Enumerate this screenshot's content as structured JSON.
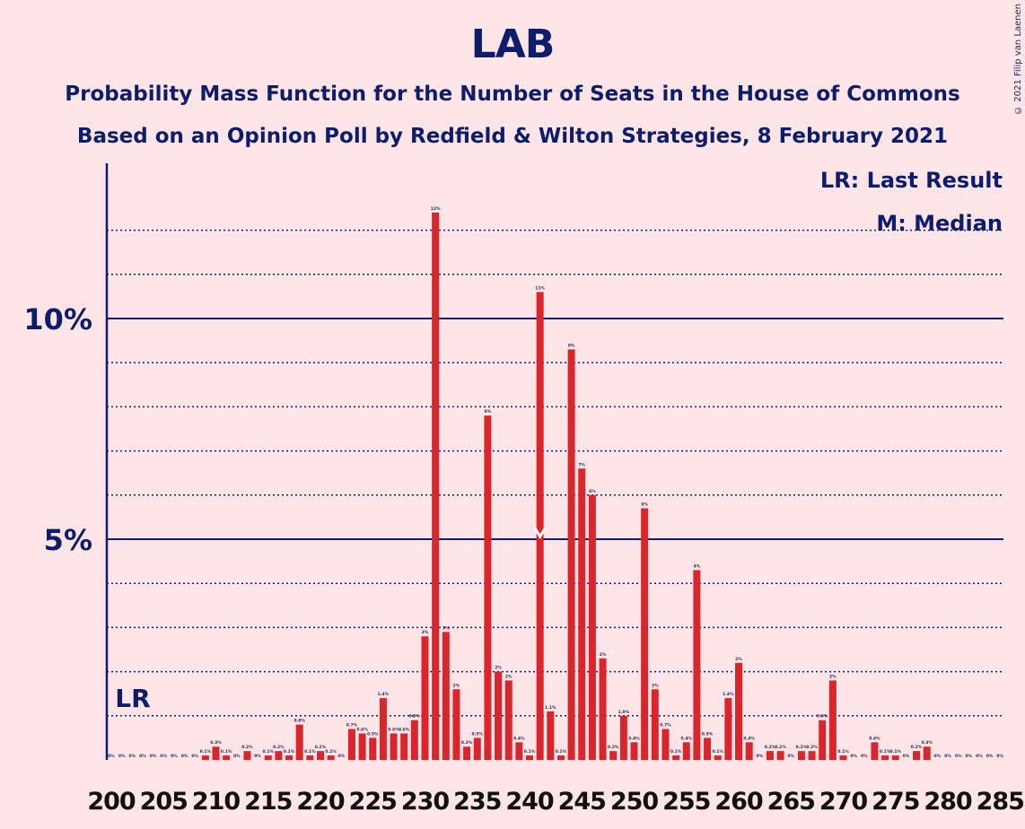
{
  "chart_data": {
    "type": "bar",
    "title": "LAB",
    "subtitle_1": "Probability Mass Function for the Number of Seats in the House of Commons",
    "subtitle_2": "Based on an Opinion Poll by Redfield & Wilton Strategies, 8 February 2021",
    "credit": "© 2021 Filip van Laenen",
    "legend": {
      "lr": "LR: Last Result",
      "m": "M: Median",
      "placement": "top-right"
    },
    "lr_label": "LR",
    "last_result_seat": 202,
    "median_seat": 241,
    "median_marker": "M",
    "y_ticks": [
      {
        "value": 5,
        "label": "5%"
      },
      {
        "value": 10,
        "label": "10%"
      }
    ],
    "ylim": [
      0,
      13.5
    ],
    "xlim": [
      200,
      285
    ],
    "x_ticks": [
      200,
      205,
      210,
      215,
      220,
      225,
      230,
      235,
      240,
      245,
      250,
      255,
      260,
      265,
      270,
      275,
      280,
      285
    ],
    "bar_color": "#d9252b",
    "axis_color": "#0c1d6b",
    "bars": [
      {
        "seat": 200,
        "value": 0,
        "label": "0%"
      },
      {
        "seat": 201,
        "value": 0,
        "label": "0%"
      },
      {
        "seat": 202,
        "value": 0,
        "label": "0%"
      },
      {
        "seat": 203,
        "value": 0,
        "label": "0%"
      },
      {
        "seat": 204,
        "value": 0,
        "label": "0%"
      },
      {
        "seat": 205,
        "value": 0,
        "label": "0%"
      },
      {
        "seat": 206,
        "value": 0,
        "label": "0%"
      },
      {
        "seat": 207,
        "value": 0,
        "label": "0%"
      },
      {
        "seat": 208,
        "value": 0,
        "label": "0%"
      },
      {
        "seat": 209,
        "value": 0.1,
        "label": "0.1%"
      },
      {
        "seat": 210,
        "value": 0.3,
        "label": "0.3%"
      },
      {
        "seat": 211,
        "value": 0.1,
        "label": "0.1%"
      },
      {
        "seat": 212,
        "value": 0,
        "label": "0%"
      },
      {
        "seat": 213,
        "value": 0.2,
        "label": "0.2%"
      },
      {
        "seat": 214,
        "value": 0,
        "label": "0%"
      },
      {
        "seat": 215,
        "value": 0.1,
        "label": "0.1%"
      },
      {
        "seat": 216,
        "value": 0.2,
        "label": "0.2%"
      },
      {
        "seat": 217,
        "value": 0.1,
        "label": "0.1%"
      },
      {
        "seat": 218,
        "value": 0.8,
        "label": "0.8%"
      },
      {
        "seat": 219,
        "value": 0.1,
        "label": "0.1%"
      },
      {
        "seat": 220,
        "value": 0.2,
        "label": "0.2%"
      },
      {
        "seat": 221,
        "value": 0.1,
        "label": "0.1%"
      },
      {
        "seat": 222,
        "value": 0,
        "label": "0%"
      },
      {
        "seat": 223,
        "value": 0.7,
        "label": "0.7%"
      },
      {
        "seat": 224,
        "value": 0.6,
        "label": "0.6%"
      },
      {
        "seat": 225,
        "value": 0.5,
        "label": "0.5%"
      },
      {
        "seat": 226,
        "value": 1.4,
        "label": "1.4%"
      },
      {
        "seat": 227,
        "value": 0.6,
        "label": "0.6%"
      },
      {
        "seat": 228,
        "value": 0.6,
        "label": "0.6%"
      },
      {
        "seat": 229,
        "value": 0.9,
        "label": "0.9%"
      },
      {
        "seat": 230,
        "value": 2.8,
        "label": "3%"
      },
      {
        "seat": 231,
        "value": 12.4,
        "label": "12%"
      },
      {
        "seat": 232,
        "value": 2.9,
        "label": "3%"
      },
      {
        "seat": 233,
        "value": 1.6,
        "label": "2%"
      },
      {
        "seat": 234,
        "value": 0.3,
        "label": "0.3%"
      },
      {
        "seat": 235,
        "value": 0.5,
        "label": "0.5%"
      },
      {
        "seat": 236,
        "value": 7.8,
        "label": "8%"
      },
      {
        "seat": 237,
        "value": 2.0,
        "label": "2%"
      },
      {
        "seat": 238,
        "value": 1.8,
        "label": "2%"
      },
      {
        "seat": 239,
        "value": 0.4,
        "label": "0.4%"
      },
      {
        "seat": 240,
        "value": 0.1,
        "label": "0.1%"
      },
      {
        "seat": 241,
        "value": 10.6,
        "label": "11%"
      },
      {
        "seat": 242,
        "value": 1.1,
        "label": "1.1%"
      },
      {
        "seat": 243,
        "value": 0.1,
        "label": "0.1%"
      },
      {
        "seat": 244,
        "value": 9.3,
        "label": "9%"
      },
      {
        "seat": 245,
        "value": 6.6,
        "label": "7%"
      },
      {
        "seat": 246,
        "value": 6.0,
        "label": "6%"
      },
      {
        "seat": 247,
        "value": 2.3,
        "label": "2%"
      },
      {
        "seat": 248,
        "value": 0.2,
        "label": "0.2%"
      },
      {
        "seat": 249,
        "value": 1.0,
        "label": "1.0%"
      },
      {
        "seat": 250,
        "value": 0.4,
        "label": "0.4%"
      },
      {
        "seat": 251,
        "value": 5.7,
        "label": "6%"
      },
      {
        "seat": 252,
        "value": 1.6,
        "label": "2%"
      },
      {
        "seat": 253,
        "value": 0.7,
        "label": "0.7%"
      },
      {
        "seat": 254,
        "value": 0.1,
        "label": "0.1%"
      },
      {
        "seat": 255,
        "value": 0.4,
        "label": "0.4%"
      },
      {
        "seat": 256,
        "value": 4.3,
        "label": "4%"
      },
      {
        "seat": 257,
        "value": 0.5,
        "label": "0.5%"
      },
      {
        "seat": 258,
        "value": 0.1,
        "label": "0.1%"
      },
      {
        "seat": 259,
        "value": 1.4,
        "label": "1.4%"
      },
      {
        "seat": 260,
        "value": 2.2,
        "label": "2%"
      },
      {
        "seat": 261,
        "value": 0.4,
        "label": "0.4%"
      },
      {
        "seat": 262,
        "value": 0,
        "label": "0%"
      },
      {
        "seat": 263,
        "value": 0.2,
        "label": "0.2%"
      },
      {
        "seat": 264,
        "value": 0.2,
        "label": "0.2%"
      },
      {
        "seat": 265,
        "value": 0,
        "label": "0%"
      },
      {
        "seat": 266,
        "value": 0.2,
        "label": "0.2%"
      },
      {
        "seat": 267,
        "value": 0.2,
        "label": "0.2%"
      },
      {
        "seat": 268,
        "value": 0.9,
        "label": "0.9%"
      },
      {
        "seat": 269,
        "value": 1.8,
        "label": "2%"
      },
      {
        "seat": 270,
        "value": 0.1,
        "label": "0.1%"
      },
      {
        "seat": 271,
        "value": 0,
        "label": "0%"
      },
      {
        "seat": 272,
        "value": 0,
        "label": "0%"
      },
      {
        "seat": 273,
        "value": 0.4,
        "label": "0.4%"
      },
      {
        "seat": 274,
        "value": 0.1,
        "label": "0.1%"
      },
      {
        "seat": 275,
        "value": 0.1,
        "label": "0.1%"
      },
      {
        "seat": 276,
        "value": 0,
        "label": "0%"
      },
      {
        "seat": 277,
        "value": 0.2,
        "label": "0.2%"
      },
      {
        "seat": 278,
        "value": 0.3,
        "label": "0.3%"
      },
      {
        "seat": 279,
        "value": 0,
        "label": "0%"
      },
      {
        "seat": 280,
        "value": 0,
        "label": "0%"
      },
      {
        "seat": 281,
        "value": 0,
        "label": "0%"
      },
      {
        "seat": 282,
        "value": 0,
        "label": "0%"
      },
      {
        "seat": 283,
        "value": 0,
        "label": "0%"
      },
      {
        "seat": 284,
        "value": 0,
        "label": "0%"
      },
      {
        "seat": 285,
        "value": 0,
        "label": "0%"
      }
    ]
  }
}
